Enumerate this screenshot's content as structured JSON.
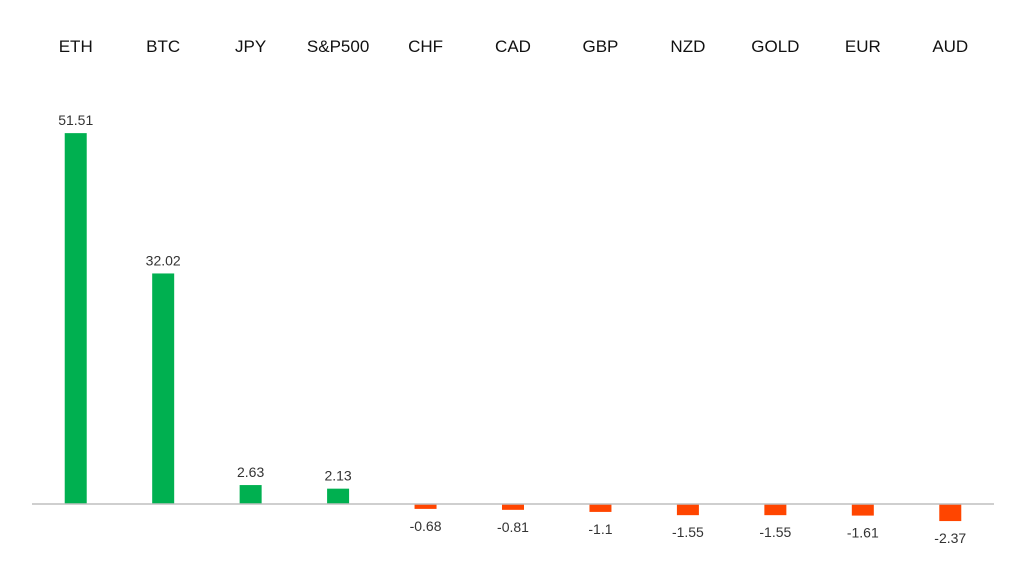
{
  "chart_data": {
    "type": "bar",
    "title": "",
    "xlabel": "",
    "ylabel": "",
    "categories": [
      "ETH",
      "BTC",
      "JPY",
      "S&P500",
      "CHF",
      "CAD",
      "GBP",
      "NZD",
      "GOLD",
      "EUR",
      "AUD"
    ],
    "values": [
      51.51,
      32.02,
      2.63,
      2.13,
      -0.68,
      -0.81,
      -1.1,
      -1.55,
      -1.55,
      -1.61,
      -2.37
    ],
    "value_labels": [
      "51.51",
      "32.02",
      "2.63",
      "2.13",
      "-0.68",
      "-0.81",
      "-1.1",
      "-1.55",
      "-1.55",
      "-1.61",
      "-2.37"
    ],
    "ylim": [
      -2.37,
      51.51
    ],
    "category_axis_position": "top",
    "grid": false,
    "legend": "none",
    "colors": {
      "positive": "#00B050",
      "negative": "#FF4500",
      "axis": "#BFBFBF"
    }
  }
}
